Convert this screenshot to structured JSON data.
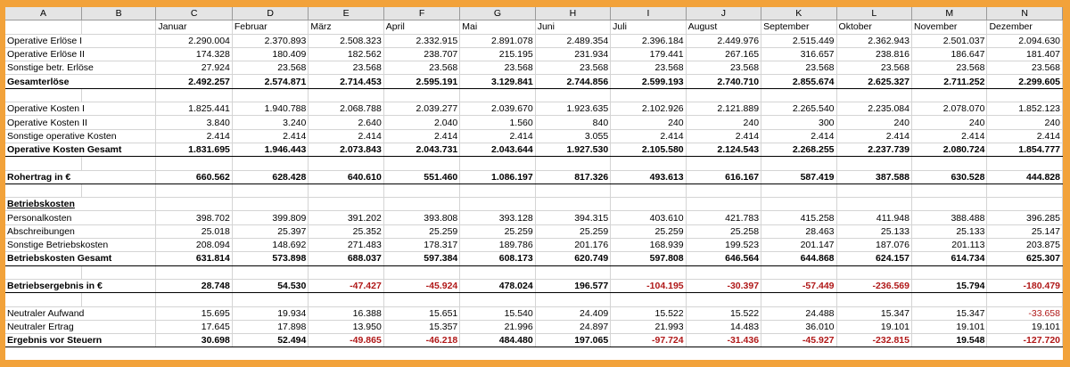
{
  "sheet": {
    "column_headers": [
      "A",
      "B",
      "C",
      "D",
      "E",
      "F",
      "G",
      "H",
      "I",
      "J",
      "K",
      "L",
      "M",
      "N"
    ],
    "months": [
      "Januar",
      "Februar",
      "März",
      "April",
      "Mai",
      "Juni",
      "Juli",
      "August",
      "September",
      "Oktober",
      "November",
      "Dezember"
    ],
    "rows": [
      {
        "type": "data",
        "label": "Operative Erlöse I",
        "values": [
          "2.290.004",
          "2.370.893",
          "2.508.323",
          "2.332.915",
          "2.891.078",
          "2.489.354",
          "2.396.184",
          "2.449.976",
          "2.515.449",
          "2.362.943",
          "2.501.037",
          "2.094.630"
        ]
      },
      {
        "type": "data",
        "label": "Operative Erlöse II",
        "values": [
          "174.328",
          "180.409",
          "182.562",
          "238.707",
          "215.195",
          "231.934",
          "179.441",
          "267.165",
          "316.657",
          "238.816",
          "186.647",
          "181.407"
        ]
      },
      {
        "type": "data",
        "label": "Sonstige betr. Erlöse",
        "values": [
          "27.924",
          "23.568",
          "23.568",
          "23.568",
          "23.568",
          "23.568",
          "23.568",
          "23.568",
          "23.568",
          "23.568",
          "23.568",
          "23.568"
        ]
      },
      {
        "type": "total",
        "label": "Gesamterlöse",
        "values": [
          "2.492.257",
          "2.574.871",
          "2.714.453",
          "2.595.191",
          "3.129.841",
          "2.744.856",
          "2.599.193",
          "2.740.710",
          "2.855.674",
          "2.625.327",
          "2.711.252",
          "2.299.605"
        ]
      },
      {
        "type": "blank"
      },
      {
        "type": "data",
        "label": "Operative Kosten I",
        "values": [
          "1.825.441",
          "1.940.788",
          "2.068.788",
          "2.039.277",
          "2.039.670",
          "1.923.635",
          "2.102.926",
          "2.121.889",
          "2.265.540",
          "2.235.084",
          "2.078.070",
          "1.852.123"
        ]
      },
      {
        "type": "data",
        "label": "Operative Kosten II",
        "values": [
          "3.840",
          "3.240",
          "2.640",
          "2.040",
          "1.560",
          "840",
          "240",
          "240",
          "300",
          "240",
          "240",
          "240"
        ]
      },
      {
        "type": "data",
        "label": "Sonstige operative Kosten",
        "values": [
          "2.414",
          "2.414",
          "2.414",
          "2.414",
          "2.414",
          "3.055",
          "2.414",
          "2.414",
          "2.414",
          "2.414",
          "2.414",
          "2.414"
        ]
      },
      {
        "type": "total",
        "label": "Operative Kosten Gesamt",
        "values": [
          "1.831.695",
          "1.946.443",
          "2.073.843",
          "2.043.731",
          "2.043.644",
          "1.927.530",
          "2.105.580",
          "2.124.543",
          "2.268.255",
          "2.237.739",
          "2.080.724",
          "1.854.777"
        ]
      },
      {
        "type": "blank"
      },
      {
        "type": "result",
        "label": "Rohertrag in €",
        "values": [
          "660.562",
          "628.428",
          "640.610",
          "551.460",
          "1.086.197",
          "817.326",
          "493.613",
          "616.167",
          "587.419",
          "387.588",
          "630.528",
          "444.828"
        ]
      },
      {
        "type": "blank"
      },
      {
        "type": "header",
        "label": "Betriebskosten"
      },
      {
        "type": "data",
        "label": "Personalkosten",
        "values": [
          "398.702",
          "399.809",
          "391.202",
          "393.808",
          "393.128",
          "394.315",
          "403.610",
          "421.783",
          "415.258",
          "411.948",
          "388.488",
          "396.285"
        ]
      },
      {
        "type": "data",
        "label": "Abschreibungen",
        "values": [
          "25.018",
          "25.397",
          "25.352",
          "25.259",
          "25.259",
          "25.259",
          "25.259",
          "25.258",
          "28.463",
          "25.133",
          "25.133",
          "25.147"
        ]
      },
      {
        "type": "data",
        "label": "Sonstige Betriebskosten",
        "values": [
          "208.094",
          "148.692",
          "271.483",
          "178.317",
          "189.786",
          "201.176",
          "168.939",
          "199.523",
          "201.147",
          "187.076",
          "201.113",
          "203.875"
        ]
      },
      {
        "type": "total",
        "label": "Betriebskosten Gesamt",
        "values": [
          "631.814",
          "573.898",
          "688.037",
          "597.384",
          "608.173",
          "620.749",
          "597.808",
          "646.564",
          "644.868",
          "624.157",
          "614.734",
          "625.307"
        ]
      },
      {
        "type": "blank"
      },
      {
        "type": "result",
        "label": "Betriebsergebnis in €",
        "values": [
          "28.748",
          "54.530",
          "-47.427",
          "-45.924",
          "478.024",
          "196.577",
          "-104.195",
          "-30.397",
          "-57.449",
          "-236.569",
          "15.794",
          "-180.479"
        ]
      },
      {
        "type": "blank"
      },
      {
        "type": "data",
        "label": "Neutraler Aufwand",
        "values": [
          "15.695",
          "19.934",
          "16.388",
          "15.651",
          "15.540",
          "24.409",
          "15.522",
          "15.522",
          "24.488",
          "15.347",
          "15.347",
          "-33.658"
        ]
      },
      {
        "type": "data",
        "label": "Neutraler Ertrag",
        "values": [
          "17.645",
          "17.898",
          "13.950",
          "15.357",
          "21.996",
          "24.897",
          "21.993",
          "14.483",
          "36.010",
          "19.101",
          "19.101",
          "19.101"
        ]
      },
      {
        "type": "total",
        "label": "Ergebnis vor Steuern",
        "values": [
          "30.698",
          "52.494",
          "-49.865",
          "-46.218",
          "484.480",
          "197.065",
          "-97.724",
          "-31.436",
          "-45.927",
          "-232.815",
          "19.548",
          "-127.720"
        ]
      }
    ]
  },
  "colors": {
    "frame": "#f2a23a",
    "negative": "#b01818",
    "header_bg": "#e4e4e4"
  }
}
